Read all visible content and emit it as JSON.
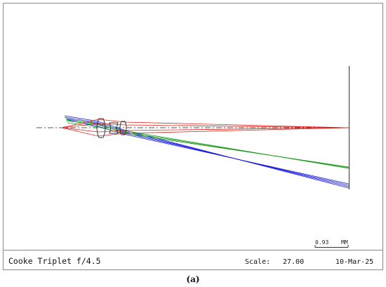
{
  "title": "Cooke Triplet f/4.5",
  "scale_label": "Scale:",
  "scale_value": "27.00",
  "date": "10-Mar-25",
  "scale_bar": {
    "value": "0.93",
    "unit": "MM"
  },
  "caption": "(a)",
  "colors": {
    "field_on_axis": "#e0221a",
    "field_mid": "#1a9a1a",
    "field_full": "#1a1ae0",
    "axis": "#555555",
    "lens": "#333333",
    "frame": "#888888"
  }
}
